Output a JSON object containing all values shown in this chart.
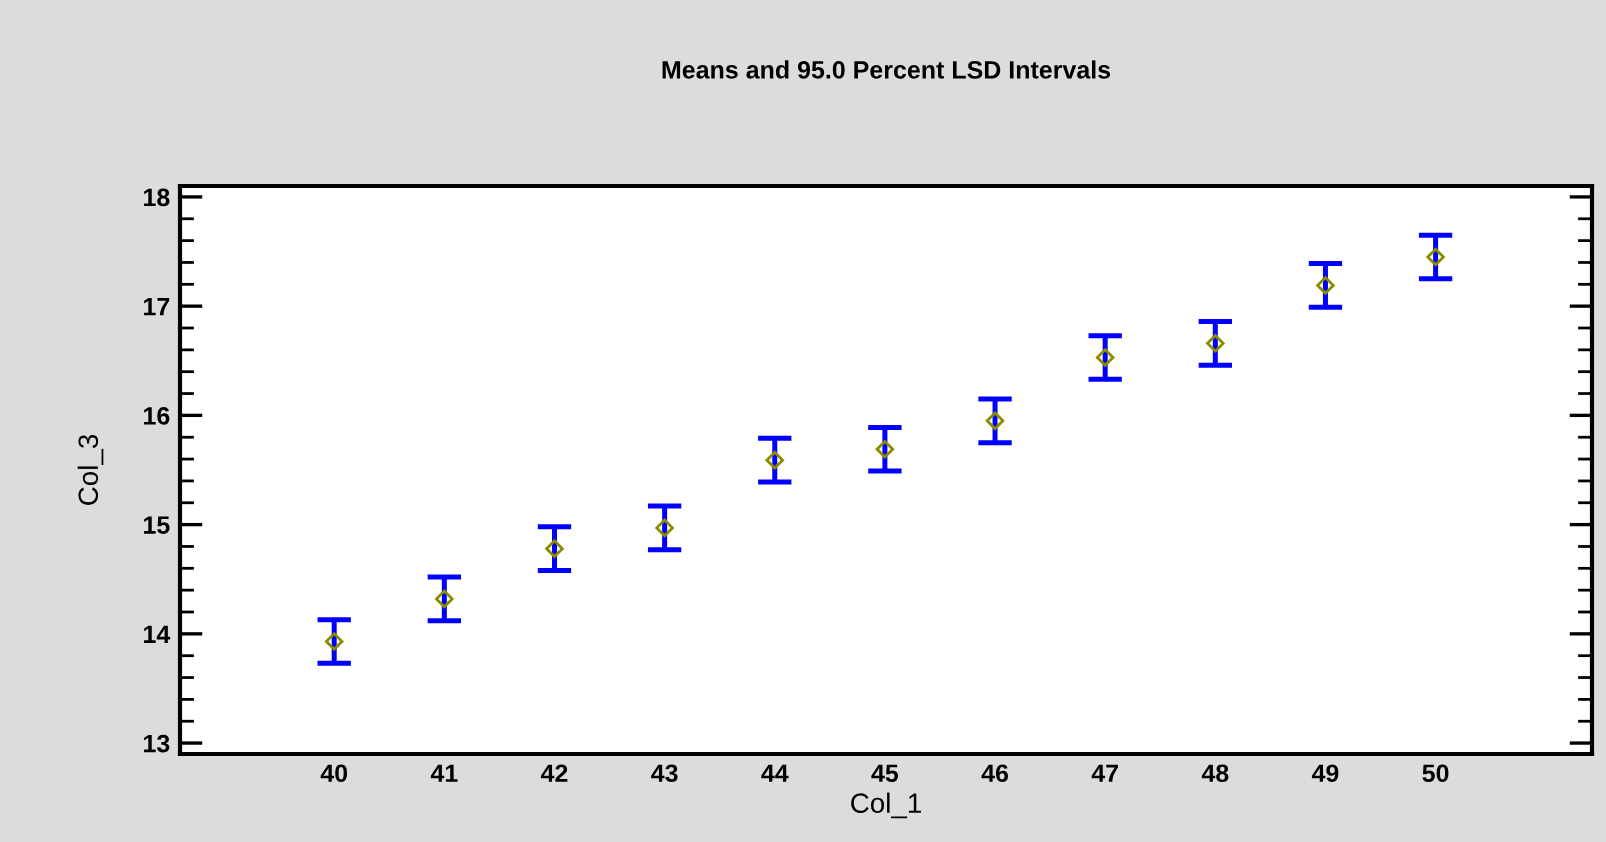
{
  "chart_data": {
    "type": "scatter",
    "title": "Means and 95.0 Percent LSD Intervals",
    "xlabel": "Col_1",
    "ylabel": "Col_3",
    "categories": [
      "40",
      "41",
      "42",
      "43",
      "44",
      "45",
      "46",
      "47",
      "48",
      "49",
      "50"
    ],
    "series": [
      {
        "color": "#8b8b00",
        "values": [
          13.93,
          14.32,
          14.78,
          14.97,
          15.59,
          15.69,
          15.95,
          16.53,
          16.66,
          17.19,
          17.45
        ],
        "errors": [
          0.2,
          0.2,
          0.2,
          0.2,
          0.2,
          0.2,
          0.2,
          0.2,
          0.2,
          0.2,
          0.2
        ]
      }
    ],
    "ylim": [
      12.9,
      18.1
    ],
    "yticks": [
      13,
      14,
      15,
      16,
      17,
      18
    ],
    "grid": false,
    "legend": false,
    "marker": "diamond"
  }
}
